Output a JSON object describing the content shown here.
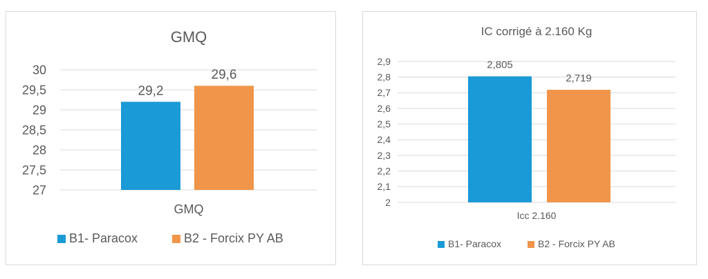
{
  "chart_data": [
    {
      "type": "bar",
      "title": "GMQ",
      "categories": [
        "GMQ"
      ],
      "series": [
        {
          "name": "B1- Paracox",
          "values": [
            29.2
          ],
          "color": "#1a9ad6"
        },
        {
          "name": "B2 - Forcix PY AB",
          "values": [
            29.6
          ],
          "color": "#f0954a"
        }
      ],
      "data_labels": [
        "29,2",
        "29,6"
      ],
      "ylim": [
        27,
        30
      ],
      "y_ticks": [
        "27",
        "27,5",
        "28",
        "28,5",
        "29",
        "29,5",
        "30"
      ],
      "grid": true,
      "legend_position": "bottom"
    },
    {
      "type": "bar",
      "title": "IC corrigé à 2.160 Kg",
      "categories": [
        "Icc 2.160"
      ],
      "series": [
        {
          "name": "B1- Paracox",
          "values": [
            2.805
          ],
          "color": "#1a9ad6"
        },
        {
          "name": "B2 - Forcix PY AB",
          "values": [
            2.719
          ],
          "color": "#f0954a"
        }
      ],
      "data_labels": [
        "2,805",
        "2,719"
      ],
      "ylim": [
        2,
        2.9
      ],
      "y_ticks": [
        "2",
        "2,1",
        "2,2",
        "2,3",
        "2,4",
        "2,5",
        "2,6",
        "2,7",
        "2,8",
        "2,9"
      ],
      "grid": true,
      "legend_position": "bottom"
    }
  ]
}
